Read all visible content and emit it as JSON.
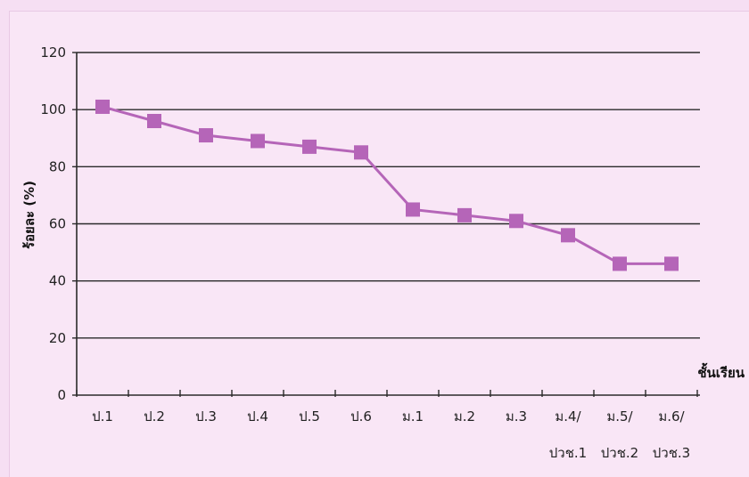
{
  "chart_data": {
    "type": "line",
    "categories": [
      "ป.1",
      "ป.2",
      "ป.3",
      "ป.4",
      "ป.5",
      "ป.6",
      "ม.1",
      "ม.2",
      "ม.3",
      "ม.4/",
      "ม.5/",
      "ม.6/"
    ],
    "categories_line2": [
      "",
      "",
      "",
      "",
      "",
      "",
      "",
      "",
      "",
      "ปวช.1",
      "ปวช.2",
      "ปวช.3"
    ],
    "series": [
      {
        "values": [
          101,
          96,
          91,
          89,
          87,
          85,
          65,
          63,
          61,
          56,
          46,
          46
        ],
        "color": "#b565b8",
        "marker": "square"
      }
    ],
    "xlabel": "ชั้นเรียน",
    "ylabel": "ร้อยละ (%)",
    "ylim": [
      0,
      120
    ],
    "yticks": [
      0,
      20,
      40,
      60,
      80,
      100,
      120
    ],
    "grid": true,
    "legend": "none"
  }
}
